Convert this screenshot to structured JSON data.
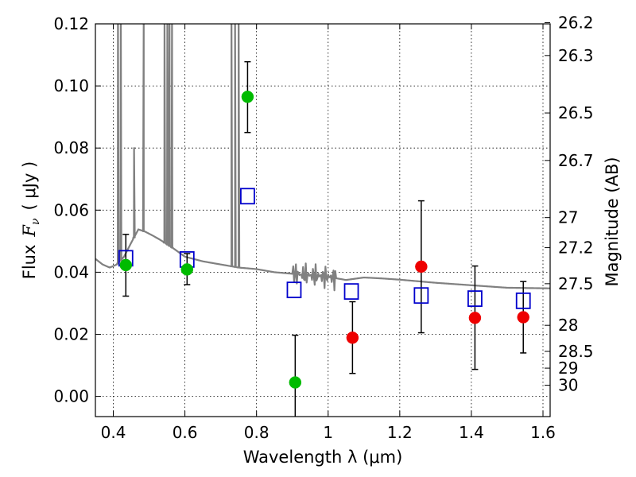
{
  "chart_data": {
    "type": "scatter",
    "title": "",
    "xlabel": "Wavelength  λ (μm)",
    "ylabel_text": "Flux",
    "ylabel_symbol": "F",
    "ylabel_symbol_sub": "ν",
    "ylabel_unit": "( μJy )",
    "y2label": "Magnitude (AB)",
    "xlim": [
      0.35,
      1.62
    ],
    "ylim": [
      -0.0065,
      0.12
    ],
    "grid": true,
    "x_ticks": [
      0.4,
      0.6,
      0.8,
      1.0,
      1.2,
      1.4,
      1.6
    ],
    "x_tick_labels": [
      "0.4",
      "0.6",
      "0.8",
      "1",
      "1.2",
      "1.4",
      "1.6"
    ],
    "y_ticks": [
      0.0,
      0.02,
      0.04,
      0.06,
      0.08,
      0.1,
      0.12
    ],
    "y_tick_labels": [
      "0.00",
      "0.02",
      "0.04",
      "0.06",
      "0.08",
      "0.10",
      "0.12"
    ],
    "y2_ticks": [
      {
        "label": "26.2",
        "flux": 0.1204
      },
      {
        "label": "26.3",
        "flux": 0.1098
      },
      {
        "label": "26.5",
        "flux": 0.0913
      },
      {
        "label": "26.7",
        "flux": 0.076
      },
      {
        "label": "27",
        "flux": 0.0576
      },
      {
        "label": "27.2",
        "flux": 0.0479
      },
      {
        "label": "27.5",
        "flux": 0.0363
      },
      {
        "label": "28",
        "flux": 0.0229
      },
      {
        "label": "28.5",
        "flux": 0.0145
      },
      {
        "label": "29",
        "flux": 0.0091
      },
      {
        "label": "30",
        "flux": 0.0036
      }
    ],
    "series": [
      {
        "kind": "model-spectrum",
        "color": "#808080",
        "points": [
          [
            0.35,
            0.0443
          ],
          [
            0.37,
            0.0425
          ],
          [
            0.39,
            0.0415
          ],
          [
            0.41,
            0.0425
          ],
          [
            0.43,
            0.045
          ],
          [
            0.45,
            0.0495
          ],
          [
            0.47,
            0.0538
          ],
          [
            0.49,
            0.053
          ],
          [
            0.51,
            0.0518
          ],
          [
            0.53,
            0.0505
          ],
          [
            0.55,
            0.049
          ],
          [
            0.57,
            0.0475
          ],
          [
            0.6,
            0.045
          ],
          [
            0.65,
            0.0435
          ],
          [
            0.7,
            0.0425
          ],
          [
            0.75,
            0.0415
          ],
          [
            0.8,
            0.041
          ],
          [
            0.85,
            0.04
          ],
          [
            0.9,
            0.0395
          ],
          [
            0.95,
            0.039
          ],
          [
            1.0,
            0.0385
          ],
          [
            1.05,
            0.0375
          ],
          [
            1.1,
            0.0383
          ],
          [
            1.15,
            0.038
          ],
          [
            1.2,
            0.0376
          ],
          [
            1.3,
            0.0366
          ],
          [
            1.4,
            0.0358
          ],
          [
            1.5,
            0.035
          ],
          [
            1.62,
            0.0348
          ]
        ],
        "emission_lines": [
          {
            "x": 0.413,
            "peak": 0.125
          },
          {
            "x": 0.421,
            "peak": 0.125
          },
          {
            "x": 0.458,
            "peak": 0.08
          },
          {
            "x": 0.485,
            "peak": 0.125
          },
          {
            "x": 0.543,
            "peak": 0.125
          },
          {
            "x": 0.551,
            "peak": 0.125
          },
          {
            "x": 0.557,
            "peak": 0.125
          },
          {
            "x": 0.564,
            "peak": 0.125
          },
          {
            "x": 0.73,
            "peak": 0.125
          },
          {
            "x": 0.74,
            "peak": 0.125
          },
          {
            "x": 0.75,
            "peak": 0.125
          }
        ],
        "absorption_region": {
          "x": [
            0.9,
            1.02
          ],
          "depth": 0.004
        }
      },
      {
        "kind": "model-photometry",
        "marker": "open-square",
        "color": "#0000cc",
        "points": [
          {
            "x": 0.435,
            "y": 0.0445
          },
          {
            "x": 0.606,
            "y": 0.0441
          },
          {
            "x": 0.775,
            "y": 0.0645
          },
          {
            "x": 0.905,
            "y": 0.0343
          },
          {
            "x": 1.065,
            "y": 0.0338
          },
          {
            "x": 1.26,
            "y": 0.0325
          },
          {
            "x": 1.41,
            "y": 0.0315
          },
          {
            "x": 1.545,
            "y": 0.0308
          }
        ]
      },
      {
        "kind": "observed-optical",
        "marker": "filled-circle",
        "color": "#00bb00",
        "points": [
          {
            "x": 0.435,
            "y": 0.0423,
            "ylo": 0.0323,
            "yhi": 0.0522
          },
          {
            "x": 0.606,
            "y": 0.0409,
            "ylo": 0.036,
            "yhi": 0.046
          },
          {
            "x": 0.775,
            "y": 0.0965,
            "ylo": 0.085,
            "yhi": 0.1078
          },
          {
            "x": 0.908,
            "y": 0.0045,
            "ylo": -0.007,
            "yhi": 0.0197
          }
        ]
      },
      {
        "kind": "observed-nir",
        "marker": "filled-circle",
        "color": "#ee0000",
        "points": [
          {
            "x": 1.068,
            "y": 0.0189,
            "ylo": 0.0074,
            "yhi": 0.0305
          },
          {
            "x": 1.26,
            "y": 0.0418,
            "ylo": 0.0205,
            "yhi": 0.063
          },
          {
            "x": 1.41,
            "y": 0.0253,
            "ylo": 0.0087,
            "yhi": 0.042
          },
          {
            "x": 1.545,
            "y": 0.0255,
            "ylo": 0.014,
            "yhi": 0.037
          }
        ]
      }
    ]
  }
}
